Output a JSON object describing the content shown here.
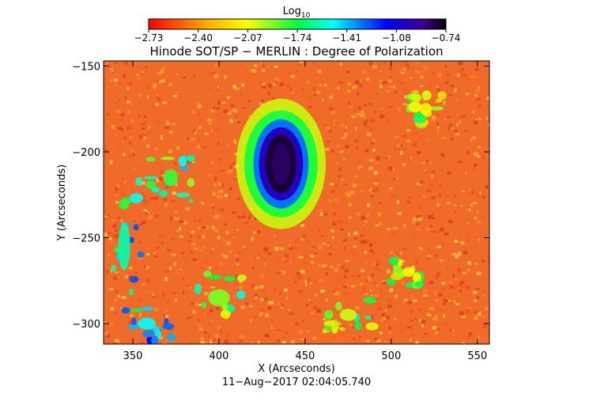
{
  "chart_data": {
    "type": "heatmap",
    "title": "Hinode SOT/SP − MERLIN : Degree of Polarization",
    "xlabel": "X (Arcseconds)",
    "ylabel": "Y (Arcseconds)",
    "timestamp": "11−Aug−2017 02:04:05.740",
    "colorbar": {
      "label_base": "Log",
      "label_sub": "10",
      "ticks": [
        "−2.73",
        "−2.40",
        "−2.07",
        "−1.74",
        "−1.41",
        "−1.08",
        "−0.74"
      ],
      "range": [
        -2.73,
        -0.74
      ],
      "colormap": "rainbow (red low → yellow → green → cyan → blue → black high)"
    },
    "xlim": [
      333,
      557
    ],
    "ylim": [
      -312,
      -147
    ],
    "xticks": [
      350,
      400,
      450,
      500,
      550
    ],
    "xtick_labels": [
      "350",
      "400",
      "450",
      "500",
      "550"
    ],
    "yticks": [
      -150,
      -200,
      -250,
      -300
    ],
    "ytick_labels": [
      "−150",
      "−200",
      "−250",
      "−300"
    ],
    "background_value": -2.6,
    "features": [
      {
        "kind": "sunspot_umbra",
        "center": [
          436,
          -207
        ],
        "semi_axes": [
          9,
          17
        ],
        "value": -0.8
      },
      {
        "kind": "sunspot_penumbra",
        "center": [
          436,
          -207
        ],
        "semi_axes": [
          16,
          26
        ],
        "value": -1.3
      },
      {
        "kind": "enhanced_ring",
        "center": [
          436,
          -207
        ],
        "semi_axes": [
          26,
          38
        ],
        "value": -2.0
      },
      {
        "kind": "network_patch",
        "center": [
          345,
          -255
        ],
        "semi_axes": [
          10,
          40
        ],
        "value": -1.6
      },
      {
        "kind": "network_patch",
        "center": [
          358,
          -300
        ],
        "semi_axes": [
          15,
          10
        ],
        "value": -1.5
      },
      {
        "kind": "network_patch",
        "center": [
          372,
          -215
        ],
        "semi_axes": [
          12,
          14
        ],
        "value": -1.8
      },
      {
        "kind": "network_patch",
        "center": [
          400,
          -285
        ],
        "semi_axes": [
          18,
          14
        ],
        "value": -1.9
      },
      {
        "kind": "network_patch",
        "center": [
          475,
          -295
        ],
        "semi_axes": [
          14,
          10
        ],
        "value": -2.0
      },
      {
        "kind": "network_patch",
        "center": [
          520,
          -175
        ],
        "semi_axes": [
          10,
          10
        ],
        "value": -2.1
      },
      {
        "kind": "network_patch",
        "center": [
          510,
          -270
        ],
        "semi_axes": [
          10,
          8
        ],
        "value": -2.1
      }
    ]
  }
}
